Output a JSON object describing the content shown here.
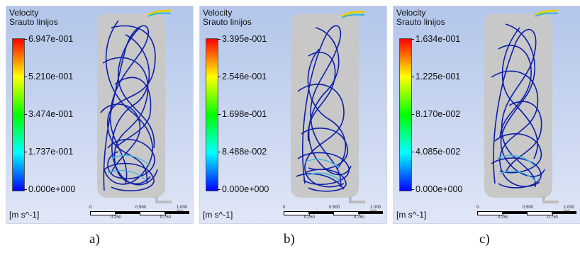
{
  "panels": [
    {
      "title": "Velocity",
      "subtitle": "Srauto linijos",
      "ticks": [
        "6.947e-001",
        "5.210e-001",
        "3.474e-001",
        "1.737e-001",
        "0.000e+000"
      ],
      "units": "[m s^-1]",
      "scale_labels": [
        "0",
        "0.500",
        "1.000 (m)",
        "0.250",
        "0.750"
      ],
      "caption": "a)"
    },
    {
      "title": "Velocity",
      "subtitle": "Srauto linijos",
      "ticks": [
        "3.395e-001",
        "2.546e-001",
        "1.698e-001",
        "8.488e-002",
        "0.000e+000"
      ],
      "units": "[m s^-1]",
      "scale_labels": [
        "0",
        "0.500",
        "1.000 (m)",
        "0.250",
        "0.750"
      ],
      "caption": "b)"
    },
    {
      "title": "Velocity",
      "subtitle": "Srauto linijos",
      "ticks": [
        "1.634e-001",
        "1.225e-001",
        "8.170e-002",
        "4.085e-002",
        "0.000e+000"
      ],
      "units": "[m s^-1]",
      "scale_labels": [
        "0",
        "0.500",
        "1.000 (m)",
        "0.250",
        "0.750"
      ],
      "caption": "c)"
    }
  ],
  "colors": {
    "background_top": "#b3c6ea",
    "background_bottom": "#dfe6f6",
    "vessel_fill": "#c8c8c8",
    "streamline": "#0d1fa8",
    "streamline_fast": "#3fb7e0"
  }
}
